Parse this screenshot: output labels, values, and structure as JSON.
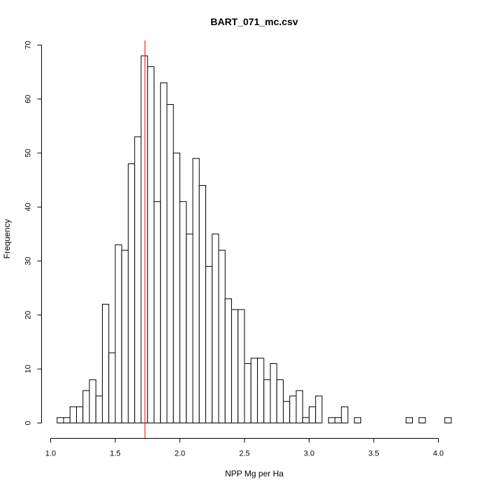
{
  "chart_data": {
    "type": "bar",
    "title": "BART_071_mc.csv",
    "xlabel": "NPP Mg per Ha",
    "ylabel": "Frequency",
    "xlim": [
      1.0,
      4.1
    ],
    "ylim": [
      0,
      70
    ],
    "bin_width": 0.05,
    "bin_start": 1.05,
    "x_ticks": [
      "1.0",
      "1.5",
      "2.0",
      "2.5",
      "3.0",
      "3.5",
      "4.0"
    ],
    "y_ticks": [
      "0",
      "10",
      "20",
      "30",
      "40",
      "50",
      "60",
      "70"
    ],
    "values": [
      1,
      1,
      3,
      3,
      6,
      8,
      5,
      22,
      13,
      33,
      32,
      48,
      53,
      68,
      66,
      41,
      63,
      59,
      50,
      41,
      35,
      49,
      44,
      29,
      35,
      32,
      23,
      21,
      21,
      11,
      12,
      12,
      8,
      11,
      8,
      4,
      5,
      6,
      1,
      3,
      5,
      0,
      1,
      1,
      3,
      0,
      1,
      0,
      0,
      0,
      0,
      0,
      0,
      0,
      1,
      0,
      1,
      0,
      0,
      0,
      1
    ],
    "reference_line": {
      "x": 1.73,
      "color": "#ff0000"
    }
  }
}
